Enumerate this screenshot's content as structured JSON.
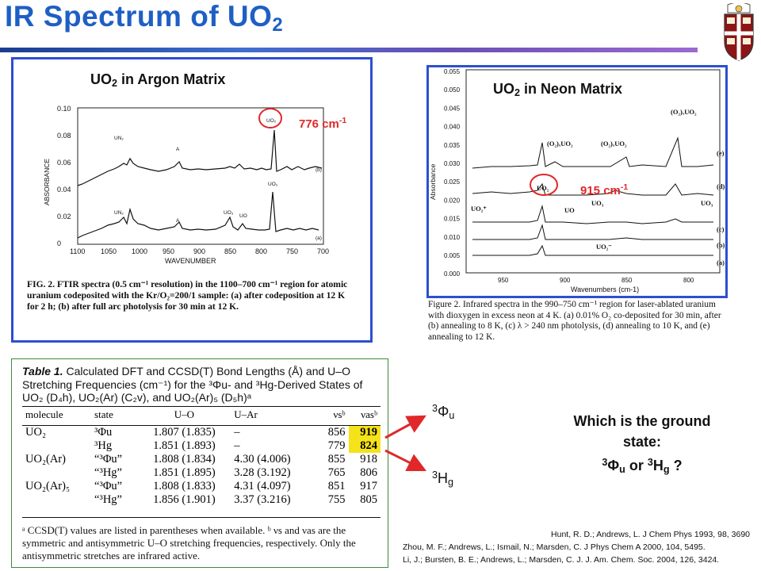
{
  "slide": {
    "title_main": "IR Spectrum of UO",
    "title_sub": "2",
    "accent_color": "#1f5fc4",
    "highlight_color": "#e0282a"
  },
  "argon_panel": {
    "heading_main": "UO",
    "heading_sub": "2",
    "heading_rest": " in Argon Matrix",
    "peak_label": "776 cm",
    "peak_label_sup": "-1",
    "y_axis_label": "ABSORBANCE",
    "y_ticks": [
      "0.10",
      "0.08",
      "0.06",
      "0.04",
      "0.02",
      "0"
    ],
    "x_axis_label": "WAVENUMBER",
    "x_ticks": [
      "1100",
      "1050",
      "1000",
      "950",
      "900",
      "850",
      "800",
      "750",
      "700"
    ],
    "trace_labels": [
      "UO₂",
      "UN₂",
      "A",
      "(b)",
      "UO₂",
      "UN₂",
      "A",
      "UO₃",
      "UO",
      "(a)"
    ],
    "caption": "FIG. 2. FTIR spectra (0.5 cm⁻¹ resolution) in the 1100–700 cm⁻¹ region for atomic uranium codeposited with the Kr/O₂=200/1 sample: (a) after codeposition at 12 K for 2 h; (b) after full arc photolysis for 30 min at 12 K."
  },
  "neon_panel": {
    "heading_main": "UO",
    "heading_sub": "2",
    "heading_rest": " in Neon Matrix",
    "peak_label": "915 cm",
    "peak_label_sup": "-1",
    "y_axis_label": "Absorbance",
    "y_ticks": [
      "0.055",
      "0.050",
      "0.045",
      "0.040",
      "0.035",
      "0.030",
      "0.025",
      "0.020",
      "0.015",
      "0.010",
      "0.005",
      "0.000"
    ],
    "x_axis_label": "Wavenumbers (cm-1)",
    "x_ticks": [
      "950",
      "900",
      "850",
      "800"
    ],
    "species_labels": [
      "(O₂)ₓUO₂",
      "(O₂)ₓUO₂",
      "(O₂)ₓUO₂",
      "UO₂",
      "UO₂⁺",
      "UO",
      "UO₃",
      "UO₃",
      "UO₂⁻"
    ],
    "trace_labels": [
      "(e)",
      "(d)",
      "(c)",
      "(b)",
      "(a)"
    ],
    "caption": "Figure 2. Infrared spectra in the 990–750 cm⁻¹ region for laser-ablated uranium with dioxygen in excess neon at 4 K. (a) 0.01% O₂ co-deposited for 30 min, after (b) annealing to 8 K, (c) λ > 240 nm photolysis, (d) annealing to 10 K, and (e) annealing to 12 K."
  },
  "table": {
    "title_bold": "Table 1.",
    "title_text": " Calculated DFT and CCSD(T) Bond Lengths (Å) and U–O Stretching Frequencies (cm⁻¹) for the ³Φu- and ³Hg-Derived States of UO₂ (D₄h), UO₂(Ar) (C₂v), and UO₂(Ar)₅ (D₅h)ᵃ",
    "headers": [
      "molecule",
      "state",
      "U–O",
      "U–Ar",
      "νsᵇ",
      "νasᵇ"
    ],
    "rows": [
      {
        "molecule": "UO₂",
        "state": "³Φu",
        "uo": "1.807 (1.835)",
        "uar": "–",
        "vs": "856",
        "vas": "919"
      },
      {
        "molecule": "",
        "state": "³Hg",
        "uo": "1.851 (1.893)",
        "uar": "–",
        "vs": "779",
        "vas": "824"
      },
      {
        "molecule": "UO₂(Ar)",
        "state": "“³Φu”",
        "uo": "1.808 (1.834)",
        "uar": "4.30 (4.006)",
        "vs": "855",
        "vas": "918"
      },
      {
        "molecule": "",
        "state": "“³Hg”",
        "uo": "1.851 (1.895)",
        "uar": "3.28 (3.192)",
        "vs": "765",
        "vas": "806"
      },
      {
        "molecule": "UO₂(Ar)₅",
        "state": "“³Φu”",
        "uo": "1.808 (1.833)",
        "uar": "4.31 (4.097)",
        "vs": "851",
        "vas": "917"
      },
      {
        "molecule": "",
        "state": "“³Hg”",
        "uo": "1.856 (1.901)",
        "uar": "3.37 (3.216)",
        "vs": "755",
        "vas": "805"
      }
    ],
    "footnote": "ᵃ CCSD(T) values are listed in parentheses when available. ᵇ νs and νas are the symmetric and antisymmetric U–O stretching frequencies, respectively. Only the antisymmetric stretches are infrared active."
  },
  "states": {
    "phi_pre": "3",
    "phi_main": "Φ",
    "phi_sub": "u",
    "h_pre": "3",
    "h_main": "H",
    "h_sub": "g"
  },
  "question": {
    "line1": "Which is the ground",
    "line2": "state:",
    "line3_a": "3",
    "line3_b": "Φ",
    "line3_c": "u",
    "line3_d": " or ",
    "line3_e": "3",
    "line3_f": "H",
    "line3_g": "g",
    "line3_h": " ?"
  },
  "references": [
    "Hunt, R. D.; Andrews, L. J Chem Phys 1993, 98, 3690",
    "Zhou, M. F.; Andrews, L.; Ismail, N.; Marsden, C. J Phys Chem A 2000, 104, 5495.",
    "Li, J.; Bursten, B. E.; Andrews, L.; Marsden, C. J. J. Am. Chem. Soc. 2004, 126, 3424."
  ]
}
